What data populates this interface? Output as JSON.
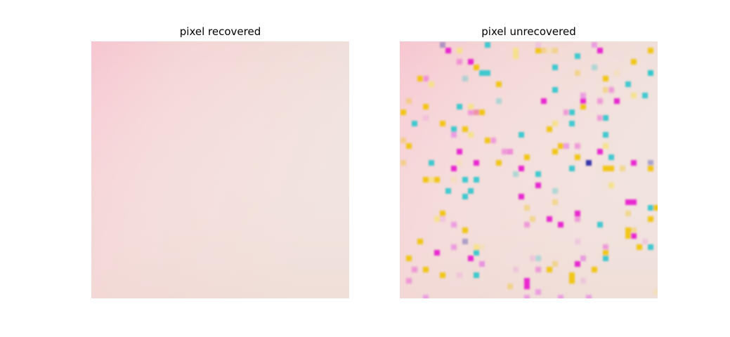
{
  "figure": {
    "panels": [
      {
        "title": "pixel recovered",
        "background_colors": [
          "#f7c6d0",
          "#f4d6d6",
          "#f2dcd8",
          "#efe0db"
        ]
      },
      {
        "title": "pixel unrecovered",
        "background_colors": [
          "#f7c6d0",
          "#f4d6d6",
          "#f2dcd8",
          "#efe0db"
        ],
        "noise_colors": [
          "#e81ccf",
          "#f1c40f",
          "#35c7cc",
          "#2c2ca8",
          "#ea9ae3",
          "#f5e08a"
        ]
      }
    ]
  }
}
